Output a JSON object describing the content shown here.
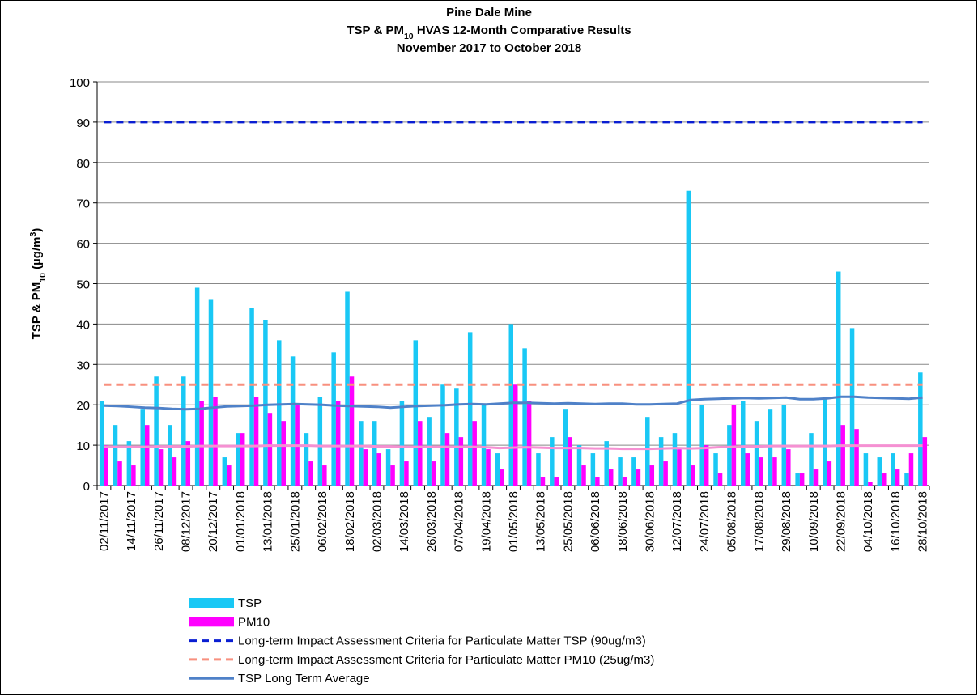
{
  "chart_data": {
    "type": "bar",
    "title": [
      [
        {
          "text": "Pine Dale Mine"
        }
      ],
      [
        {
          "text": "TSP & PM"
        },
        {
          "text": "10",
          "sub": true
        },
        {
          "text": " HVAS 12-Month Comparative Results"
        }
      ],
      [
        {
          "text": "November 2017 to October 2018"
        }
      ]
    ],
    "ylabel": [
      {
        "text": "TSP & PM"
      },
      {
        "text": "10",
        "sub": true
      },
      {
        "text": " (µg/m"
      },
      {
        "text": "3",
        "sup": true
      },
      {
        "text": ")"
      }
    ],
    "categories": [
      "02/11/2017",
      null,
      "14/11/2017",
      null,
      "26/11/2017",
      null,
      "08/12/2017",
      null,
      "20/12/2017",
      null,
      "01/01/2018",
      null,
      "13/01/2018",
      null,
      "25/01/2018",
      null,
      "06/02/2018",
      null,
      "18/02/2018",
      null,
      "02/03/2018",
      null,
      "14/03/2018",
      null,
      "26/03/2018",
      null,
      "07/04/2018",
      null,
      "19/04/2018",
      null,
      "01/05/2018",
      null,
      "13/05/2018",
      null,
      "25/05/2018",
      null,
      "06/06/2018",
      null,
      "18/06/2018",
      null,
      "30/06/2018",
      null,
      "12/07/2018",
      null,
      "24/07/2018",
      null,
      "05/08/2018",
      null,
      "17/08/2018",
      null,
      "29/08/2018",
      null,
      "10/09/2018",
      null,
      "22/09/2018",
      null,
      "04/10/2018",
      null,
      "16/10/2018",
      null,
      "28/10/2018"
    ],
    "series": [
      {
        "name": "TSP",
        "kind": "bar",
        "color": "#19c8f5",
        "values": [
          21,
          15,
          11,
          19,
          27,
          15,
          27,
          49,
          46,
          7,
          13,
          44,
          41,
          36,
          32,
          13,
          22,
          33,
          48,
          16,
          16,
          9,
          21,
          36,
          17,
          25,
          24,
          38,
          20,
          8,
          40,
          34,
          8,
          12,
          19,
          10,
          8,
          11,
          7,
          7,
          17,
          12,
          13,
          73,
          20,
          8,
          15,
          21,
          16,
          19,
          20,
          3,
          13,
          22,
          53,
          39,
          8,
          7,
          8,
          3,
          28
        ]
      },
      {
        "name": "PM10",
        "kind": "bar",
        "color": "#ff00ff",
        "values": [
          10,
          6,
          5,
          15,
          9,
          7,
          11,
          21,
          22,
          5,
          13,
          22,
          18,
          16,
          20,
          6,
          5,
          21,
          27,
          9,
          8,
          5,
          6,
          16,
          6,
          13,
          12,
          16,
          9,
          4,
          25,
          21,
          2,
          2,
          12,
          5,
          2,
          4,
          2,
          4,
          5,
          6,
          9,
          5,
          10,
          3,
          20,
          8,
          7,
          7,
          9,
          3,
          4,
          6,
          15,
          14,
          1,
          3,
          4,
          8,
          12
        ]
      },
      {
        "name": "Long-term Impact Assessment Criteria for Particulate Matter TSP (90ug/m3)",
        "kind": "constant",
        "dashed": true,
        "color": "#0a1ed2",
        "value": 90
      },
      {
        "name": "Long-term Impact Assessment Criteria for Particulate Matter PM10 (25ug/m3)",
        "kind": "constant",
        "dashed": true,
        "color": "#f8907f",
        "value": 25
      },
      {
        "name": "TSP Long Term Average",
        "kind": "line",
        "color": "#4f81c8",
        "values": [
          19.8,
          19.7,
          19.5,
          19.3,
          19.2,
          19.0,
          18.9,
          19.0,
          19.3,
          19.6,
          19.7,
          19.8,
          20.0,
          20.1,
          20.2,
          20.1,
          20.0,
          19.8,
          19.7,
          19.6,
          19.5,
          19.3,
          19.5,
          19.7,
          19.8,
          19.9,
          20.1,
          20.2,
          20.1,
          20.3,
          20.5,
          20.5,
          20.4,
          20.3,
          20.4,
          20.3,
          20.2,
          20.3,
          20.3,
          20.1,
          20.1,
          20.2,
          20.3,
          21.2,
          21.4,
          21.5,
          21.6,
          21.7,
          21.6,
          21.7,
          21.8,
          21.4,
          21.4,
          21.6,
          22.0,
          22.0,
          21.8,
          21.7,
          21.6,
          21.5,
          21.8
        ]
      },
      {
        "kind": "line",
        "color": "#f590d2",
        "values": [
          9.6,
          9.6,
          9.6,
          9.6,
          9.7,
          9.7,
          9.7,
          9.8,
          9.8,
          9.8,
          9.8,
          9.8,
          9.9,
          9.9,
          9.9,
          9.9,
          9.8,
          9.8,
          9.8,
          9.8,
          9.7,
          9.7,
          9.6,
          9.6,
          9.6,
          9.6,
          9.6,
          9.6,
          9.5,
          9.3,
          9.4,
          9.5,
          9.4,
          9.3,
          9.3,
          9.3,
          9.2,
          9.2,
          9.1,
          9.1,
          9.1,
          9.2,
          9.3,
          9.2,
          9.3,
          9.5,
          9.6,
          9.7,
          9.7,
          9.8,
          9.8,
          9.8,
          9.8,
          9.8,
          9.9,
          9.9,
          9.9,
          9.9,
          9.9,
          9.9,
          9.9
        ]
      }
    ],
    "ylim": [
      0,
      100
    ],
    "yticks": [
      0,
      10,
      20,
      30,
      40,
      50,
      60,
      70,
      80,
      90,
      100
    ],
    "grid": true,
    "legend": "bottom-left"
  }
}
